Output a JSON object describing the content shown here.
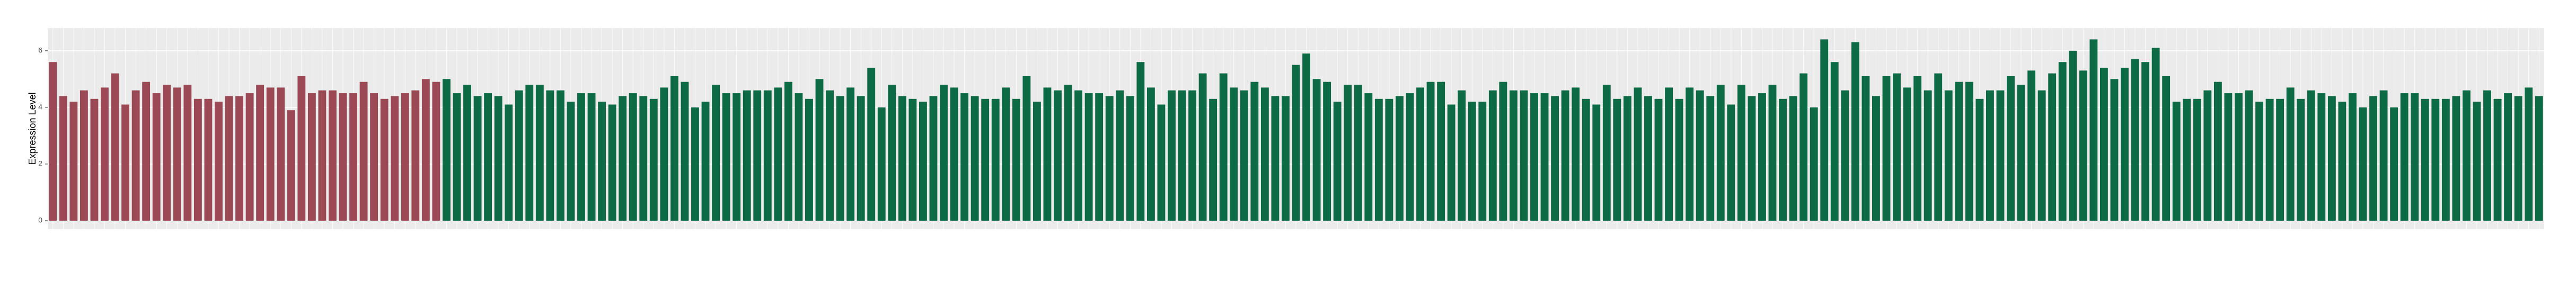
{
  "chart_data": {
    "type": "bar",
    "y_label": "Expression Level",
    "categories": [
      null,
      null,
      null,
      null,
      null,
      null,
      null,
      null,
      null,
      null,
      null,
      null,
      null,
      null,
      null,
      null,
      null,
      null,
      null,
      null,
      null,
      null,
      null,
      null,
      null,
      null,
      null,
      null,
      null,
      null,
      null,
      null,
      null,
      null,
      null,
      null,
      null,
      null,
      null,
      null,
      null,
      null,
      null,
      null,
      null,
      null,
      null,
      null,
      null,
      null,
      null,
      null,
      null,
      null,
      null,
      null,
      null,
      null,
      null,
      null,
      null,
      null,
      null,
      null,
      null,
      null,
      null,
      null,
      null,
      null,
      null,
      null,
      null,
      null,
      null,
      null,
      null,
      null,
      null,
      null,
      null,
      null,
      null,
      null,
      null,
      null,
      null,
      null,
      null,
      null,
      null,
      null,
      null,
      null,
      null,
      null,
      null,
      null,
      null,
      null,
      null,
      null,
      null,
      null,
      null,
      null,
      null,
      null,
      null,
      null,
      null,
      null,
      null,
      null,
      null,
      null,
      null,
      null,
      null,
      null,
      null,
      null,
      null,
      null,
      null,
      null,
      null,
      null,
      null,
      null,
      null,
      null,
      null,
      null,
      null,
      null,
      null,
      null,
      null,
      null,
      null,
      null,
      null,
      null,
      null,
      null,
      null,
      null,
      null,
      null,
      null,
      null,
      null,
      null,
      null,
      null,
      null,
      null,
      null,
      null,
      null,
      null,
      null,
      null,
      null,
      null,
      null,
      null,
      null,
      null,
      null,
      null,
      null,
      null,
      null,
      null,
      null,
      null,
      null,
      null,
      null,
      null,
      null,
      null,
      null,
      null,
      null,
      null,
      null,
      null,
      null,
      null,
      null,
      null,
      null,
      null,
      null,
      null,
      null,
      null,
      null,
      null,
      null,
      null,
      null,
      null,
      null,
      null,
      null,
      null,
      null,
      null,
      null,
      null,
      null,
      null,
      null,
      null,
      null,
      null,
      null,
      null,
      null,
      null,
      null,
      null,
      null,
      null,
      null,
      null,
      null,
      null,
      null,
      null,
      null,
      null,
      null,
      null,
      null,
      null,
      null
    ],
    "series": [
      {
        "color": "#9b4a55",
        "values": [
          5.6,
          4.4,
          4.2,
          4.6,
          4.3,
          4.7,
          5.2,
          4.1,
          4.6,
          4.9,
          4.5,
          4.8,
          4.7,
          4.8,
          4.3,
          4.3,
          4.2,
          4.4,
          4.4,
          4.5,
          4.8,
          4.7,
          4.7,
          3.9,
          5.1,
          4.5,
          4.6,
          4.6,
          4.5,
          4.5,
          4.9,
          4.5,
          4.3,
          4.4,
          4.5,
          4.6,
          5.0,
          4.9,
          null,
          null,
          null,
          null,
          null,
          null,
          null,
          null,
          null,
          null,
          null,
          null,
          null,
          null,
          null,
          null,
          null,
          null,
          null,
          null,
          null,
          null,
          null,
          null,
          null,
          null,
          null,
          null,
          null,
          null,
          null,
          null,
          null,
          null,
          null,
          null,
          null,
          null,
          null,
          null,
          null,
          null,
          null,
          null,
          null,
          null,
          null,
          null,
          null,
          null,
          null,
          null,
          null,
          null,
          null,
          null,
          null,
          null,
          null,
          null,
          null,
          null,
          null,
          null,
          null,
          null,
          null,
          null,
          null,
          null,
          null,
          null,
          null,
          null,
          null,
          null,
          null,
          null,
          null,
          null,
          null,
          null,
          null,
          null,
          null,
          null,
          null,
          null,
          null,
          null,
          null,
          null,
          null,
          null,
          null,
          null,
          null,
          null,
          null,
          null,
          null,
          null,
          null,
          null,
          null,
          null,
          null,
          null,
          null,
          null,
          null,
          null,
          null,
          null,
          null,
          null,
          null,
          null,
          null,
          null,
          null,
          null,
          null,
          null,
          null,
          null,
          null,
          null,
          null,
          null,
          null,
          null,
          null,
          null,
          null,
          null,
          null,
          null,
          null,
          null,
          null,
          null,
          null,
          null,
          null,
          null,
          null,
          null,
          null,
          null,
          null,
          null,
          null,
          null,
          null,
          null,
          null,
          null,
          null,
          null,
          null,
          null,
          null,
          null,
          null,
          null,
          null,
          null,
          null,
          null,
          null,
          null,
          null,
          null,
          null,
          null,
          null,
          null,
          null,
          null,
          null,
          null,
          null,
          null,
          null,
          null,
          null,
          null,
          null,
          null,
          null,
          null,
          null,
          null,
          null,
          null,
          null,
          null,
          null,
          null,
          null,
          null,
          null
        ]
      },
      {
        "color": "#0c6a45",
        "values": [
          null,
          null,
          null,
          null,
          null,
          null,
          null,
          null,
          null,
          null,
          null,
          null,
          null,
          null,
          null,
          null,
          null,
          null,
          null,
          null,
          null,
          null,
          null,
          null,
          null,
          null,
          null,
          null,
          null,
          null,
          null,
          null,
          null,
          null,
          null,
          null,
          null,
          null,
          5.0,
          4.5,
          4.8,
          4.4,
          4.5,
          4.4,
          4.1,
          4.6,
          4.8,
          4.8,
          4.6,
          4.6,
          4.2,
          4.5,
          4.5,
          4.2,
          4.1,
          4.4,
          4.5,
          4.4,
          4.3,
          4.7,
          5.1,
          4.9,
          4.0,
          4.2,
          4.8,
          4.5,
          4.5,
          4.6,
          4.6,
          4.6,
          4.7,
          4.9,
          4.5,
          4.3,
          5.0,
          4.6,
          4.4,
          4.7,
          4.4,
          5.4,
          4.0,
          4.8,
          4.4,
          4.3,
          4.2,
          4.4,
          4.8,
          4.7,
          4.5,
          4.4,
          4.3,
          4.3,
          4.7,
          4.3,
          5.1,
          4.2,
          4.7,
          4.6,
          4.8,
          4.6,
          4.5,
          4.5,
          4.4,
          4.6,
          4.4,
          5.6,
          4.7,
          4.1,
          4.6,
          4.6,
          4.6,
          5.2,
          4.3,
          5.2,
          4.7,
          4.6,
          4.9,
          4.7,
          4.4,
          4.4,
          5.5,
          5.9,
          5.0,
          4.9,
          4.2,
          4.8,
          4.8,
          4.5,
          4.3,
          4.3,
          4.4,
          4.5,
          4.7,
          4.9,
          4.9,
          4.1,
          4.6,
          4.2,
          4.2,
          4.6,
          4.9,
          4.6,
          4.6,
          4.5,
          4.5,
          4.4,
          4.6,
          4.7,
          4.3,
          4.1,
          4.8,
          4.3,
          4.4,
          4.7,
          4.4,
          4.3,
          4.7,
          4.3,
          4.7,
          4.6,
          4.4,
          4.8,
          4.1,
          4.8,
          4.4,
          4.5,
          4.8,
          4.3,
          4.4,
          5.2,
          4.0,
          6.4,
          5.6,
          4.6,
          6.3,
          5.1,
          4.4,
          5.1,
          5.2,
          4.7,
          5.1,
          4.6,
          5.2,
          4.6,
          4.9,
          4.9,
          4.3,
          4.6,
          4.6,
          5.1,
          4.8,
          5.3,
          4.6,
          5.2,
          5.6,
          6.0,
          5.3,
          6.4,
          5.4,
          5.0,
          5.4,
          5.7,
          5.6,
          6.1,
          5.1,
          4.2,
          4.3,
          4.3,
          4.6,
          4.9,
          4.5,
          4.5,
          4.6,
          4.2,
          4.3,
          4.3,
          4.7,
          4.3,
          4.6,
          4.5,
          4.4,
          4.2,
          4.5,
          4.0,
          4.4,
          4.6,
          4.0,
          4.5,
          4.5,
          4.3,
          4.3,
          4.3,
          4.4,
          4.6,
          4.2,
          4.6,
          4.3,
          4.5,
          4.4,
          4.7,
          4.4
        ]
      }
    ],
    "ylim": [
      -0.3,
      6.8
    ],
    "yticks": [
      0,
      2,
      4,
      6
    ],
    "grid": true
  }
}
